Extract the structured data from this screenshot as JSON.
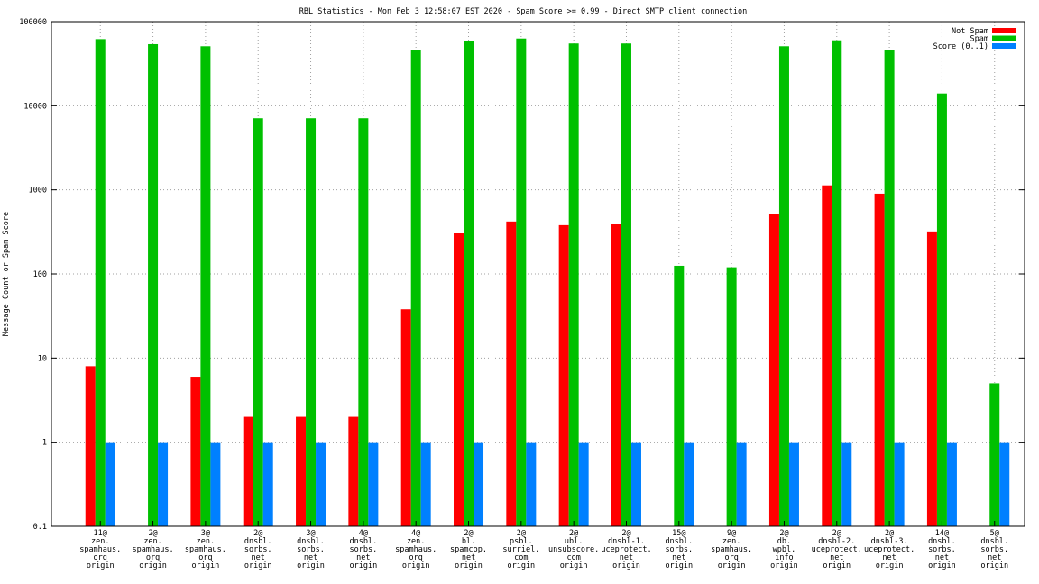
{
  "chart_data": {
    "type": "bar",
    "title": "RBL Statistics - Mon Feb  3 12:58:07 EST 2020 - Spam Score >= 0.99 - Direct SMTP client connection",
    "ylabel": "Message Count or Spam Score",
    "xlabel": "",
    "yscale": "log",
    "ylim": [
      0.1,
      100000
    ],
    "grid": "dotted",
    "legend_position": "top-right",
    "y_ticks": [
      "0.1",
      "1",
      "10",
      "100",
      "1000",
      "10000",
      "100000"
    ],
    "categories": [
      [
        "11@",
        "zen.",
        "spamhaus.",
        "org",
        "origin"
      ],
      [
        "2@",
        "zen.",
        "spamhaus.",
        "org",
        "origin"
      ],
      [
        "3@",
        "zen.",
        "spamhaus.",
        "org",
        "origin"
      ],
      [
        "2@",
        "dnsbl.",
        "sorbs.",
        "net",
        "origin"
      ],
      [
        "3@",
        "dnsbl.",
        "sorbs.",
        "net",
        "origin"
      ],
      [
        "4@",
        "dnsbl.",
        "sorbs.",
        "net",
        "origin"
      ],
      [
        "4@",
        "zen.",
        "spamhaus.",
        "org",
        "origin"
      ],
      [
        "2@",
        "bl.",
        "spamcop.",
        "net",
        "origin"
      ],
      [
        "2@",
        "psbl.",
        "surriel.",
        "com",
        "origin"
      ],
      [
        "2@",
        "ubl.",
        "unsubscore.",
        "com",
        "origin"
      ],
      [
        "2@",
        "dnsbl-1.",
        "uceprotect.",
        "net",
        "origin"
      ],
      [
        "15@",
        "dnsbl.",
        "sorbs.",
        "net",
        "origin"
      ],
      [
        "9@",
        "zen.",
        "spamhaus.",
        "org",
        "origin"
      ],
      [
        "2@",
        "db.",
        "wpbl.",
        "info",
        "origin"
      ],
      [
        "2@",
        "dnsbl-2.",
        "uceprotect.",
        "net",
        "origin"
      ],
      [
        "2@",
        "dnsbl-3.",
        "uceprotect.",
        "net",
        "origin"
      ],
      [
        "14@",
        "dnsbl.",
        "sorbs.",
        "net",
        "origin"
      ],
      [
        "5@",
        "dnsbl.",
        "sorbs.",
        "net",
        "origin"
      ]
    ],
    "series": [
      {
        "name": "Not Spam",
        "color": "#ff0000",
        "values": [
          8,
          null,
          6,
          2,
          2,
          2,
          38,
          310,
          420,
          380,
          390,
          null,
          null,
          510,
          1130,
          900,
          320,
          null
        ]
      },
      {
        "name": "Spam",
        "color": "#00c000",
        "values": [
          62000,
          54000,
          51000,
          7100,
          7100,
          7100,
          46000,
          59000,
          63000,
          55000,
          55000,
          125,
          120,
          51000,
          60000,
          46000,
          14000,
          5
        ]
      },
      {
        "name": "Score (0..1)",
        "color": "#0080ff",
        "values": [
          1,
          1,
          1,
          1,
          1,
          1,
          1,
          1,
          1,
          1,
          1,
          1,
          1,
          1,
          1,
          1,
          1,
          1
        ]
      }
    ]
  }
}
